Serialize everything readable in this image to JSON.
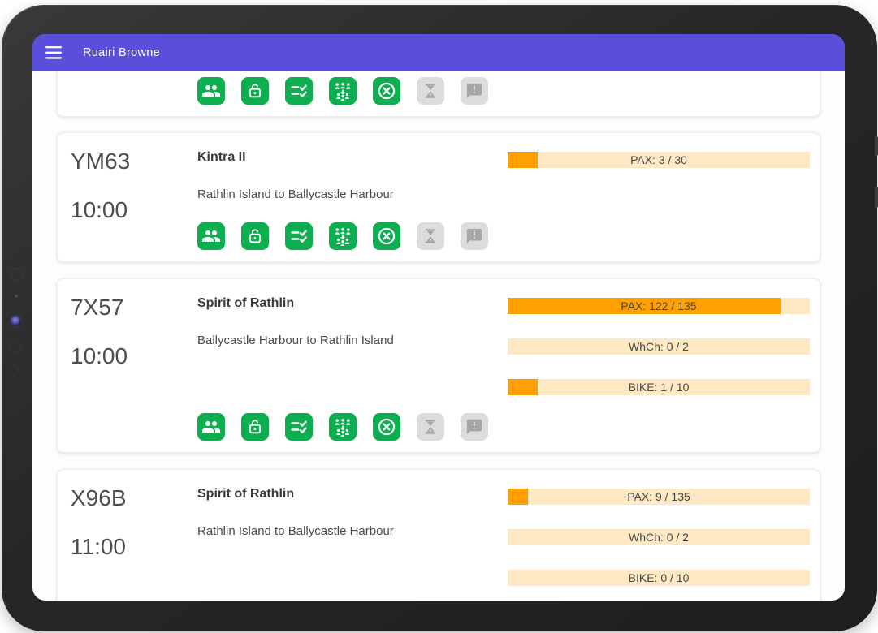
{
  "app": {
    "header": {
      "title": "Ruairi Browne",
      "background": "#5A4FDB"
    },
    "action_icons": [
      {
        "id": "passengers",
        "style": "green"
      },
      {
        "id": "lock-open",
        "style": "green"
      },
      {
        "id": "checklist",
        "style": "green"
      },
      {
        "id": "boarding-passengers",
        "style": "green"
      },
      {
        "id": "cancel",
        "style": "green"
      },
      {
        "id": "hourglass",
        "style": "gray"
      },
      {
        "id": "alert-message",
        "style": "gray"
      }
    ],
    "sailings": [
      {
        "code": "YM63",
        "time": "10:00",
        "vessel": "Kintra II",
        "route": "Rathlin Island to Ballycastle Harbour",
        "bars": [
          {
            "label": "PAX: 3 / 30",
            "percent": 10
          }
        ]
      },
      {
        "code": "7X57",
        "time": "10:00",
        "vessel": "Spirit of Rathlin",
        "route": "Ballycastle Harbour to Rathlin Island",
        "bars": [
          {
            "label": "PAX: 122 / 135",
            "percent": 90.4
          },
          {
            "label": "WhCh: 0 / 2",
            "percent": 0
          },
          {
            "label": "BIKE: 1 / 10",
            "percent": 10
          }
        ]
      },
      {
        "code": "X96B",
        "time": "11:00",
        "vessel": "Spirit of Rathlin",
        "route": "Rathlin Island to Ballycastle Harbour",
        "bars": [
          {
            "label": "PAX: 9 / 135",
            "percent": 6.7
          },
          {
            "label": "WhCh: 0 / 2",
            "percent": 0
          },
          {
            "label": "BIKE: 0 / 10",
            "percent": 0
          }
        ]
      }
    ],
    "colors": {
      "header_purple": "#5A4FDB",
      "action_green": "#0CAE4F",
      "action_gray_bg": "#DCDCDC",
      "action_gray_glyph": "#A7A7A7",
      "bar_fill_orange": "#FFA000",
      "bar_background": "#FFE9C5"
    }
  }
}
